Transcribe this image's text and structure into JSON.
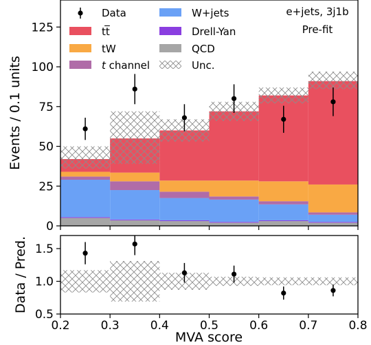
{
  "chart_data": [
    {
      "type": "bar",
      "stacked": true,
      "x_edges": [
        0.2,
        0.3,
        0.4,
        0.5,
        0.6,
        0.7,
        0.8
      ],
      "ylabel": "Events / 0.1 units",
      "ylim": [
        0,
        142
      ],
      "yticks": [
        "0",
        "25",
        "50",
        "75",
        "100",
        "125"
      ],
      "xticks": [
        "0.2",
        "0.3",
        "0.4",
        "0.5",
        "0.6",
        "0.7",
        "0.8"
      ],
      "annotation_lines": [
        "e+jets, 3j1b",
        "Pre-fit"
      ],
      "series": [
        {
          "name": "QCD",
          "color": "#a6a6a6",
          "values": [
            5,
            3.5,
            3,
            2,
            3,
            2
          ]
        },
        {
          "name": "Drell-Yan",
          "color": "#8a3ee0",
          "values": [
            0.5,
            0.5,
            0.5,
            0.5,
            0.5,
            0.5
          ]
        },
        {
          "name": "W+jets",
          "color": "#6aa1f6",
          "values": [
            23.5,
            18.5,
            14,
            14,
            10,
            4.5
          ]
        },
        {
          "name": "t channel",
          "color": "#b06ca8",
          "values": [
            2,
            5.5,
            4,
            2,
            2,
            1.5
          ]
        },
        {
          "name": "tW",
          "color": "#f9a944",
          "values": [
            3,
            5.5,
            7,
            10,
            12.5,
            17.5
          ]
        },
        {
          "name": "tt̅",
          "color": "#e9505f",
          "values": [
            8,
            21.5,
            31.5,
            43.5,
            54,
            65
          ]
        }
      ],
      "uncertainty": {
        "name": "Unc.",
        "up": [
          50,
          72,
          67,
          78,
          87,
          97
        ],
        "down": [
          36,
          39,
          53,
          66,
          77,
          86
        ]
      },
      "data": {
        "name": "Data",
        "x": [
          0.25,
          0.35,
          0.45,
          0.55,
          0.65,
          0.75
        ],
        "y": [
          61,
          86,
          68,
          80,
          67,
          78
        ],
        "err": [
          7,
          9.5,
          8.5,
          9,
          8.5,
          9
        ]
      },
      "legend": {
        "placement": "top-left",
        "columns": 2
      }
    },
    {
      "type": "scatter",
      "ylabel": "Data / Pred.",
      "xlabel": "MVA score",
      "ylim": [
        0.5,
        1.7
      ],
      "yticks": [
        "0.5",
        "1.0",
        "1.5"
      ],
      "xticks": [
        "0.2",
        "0.3",
        "0.4",
        "0.5",
        "0.6",
        "0.7",
        "0.8"
      ],
      "ratio": {
        "x": [
          0.25,
          0.35,
          0.45,
          0.55,
          0.65,
          0.75
        ],
        "y": [
          1.43,
          1.57,
          1.13,
          1.11,
          0.82,
          0.86
        ],
        "err": [
          0.17,
          0.17,
          0.15,
          0.13,
          0.1,
          0.09
        ]
      },
      "uncertainty": {
        "up": [
          1.17,
          1.31,
          1.13,
          1.07,
          1.06,
          1.06
        ],
        "down": [
          0.83,
          0.69,
          0.87,
          0.93,
          0.94,
          0.94
        ]
      }
    }
  ]
}
